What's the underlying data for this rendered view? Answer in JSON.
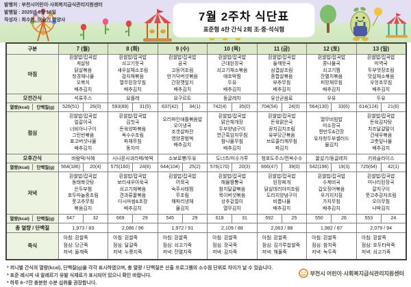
{
  "meta": {
    "publisher_line": "발행처 : 부천시어린이·사회복지급식관리지원센터",
    "date_line": "발행일 : 2025년 6월 16일",
    "author_line": "작성자 : 최수현, 이슬기 영양사"
  },
  "title": {
    "main": "7월 2주차 식단표",
    "subtitle": "표준형 4찬 간식 2회 조·중·석식형"
  },
  "colors": {
    "header_green": "#dbe9c9",
    "label_green": "#ecf3e0",
    "sunday_red": "#d80000",
    "logo_orange": "#ef8a2a"
  },
  "decorations": [
    "ferris-wheel",
    "tulips",
    "carousel",
    "fence",
    "tree",
    "mascot-with-balloon",
    "carousel"
  ],
  "table": {
    "corner_label": "구분",
    "row_labels": {
      "breakfast": "아침",
      "am_snack": "오전간식",
      "kcal": "열량(kcal)",
      "protein": "단백질(g)",
      "lunch": "점심",
      "pm_snack": "오후간식",
      "dinner": "저녁",
      "total": "총 열량 / 단백질",
      "porridge": "죽식"
    },
    "days": [
      {
        "label": "7 (월)",
        "red": false,
        "breakfast": [
          "흰쌀밥/잡곡밥",
          "게살탕",
          "닭살볶음",
          "청경채나물",
          "오복지",
          "배추김치"
        ],
        "am_snack": "석류주스",
        "am_kcal": "526(51)",
        "am_protein": "26(0)",
        "lunch": [
          "흰쌀밥/잡곡밥",
          "얼갈이국",
          "너비아니구이",
          "그린빈볶음",
          "표고버섯나물",
          "배추김치"
        ],
        "pm_snack": "바람떡/식혜",
        "pm_kcal": "564(186)",
        "pm_protein": "20(4)",
        "dinner": [
          "흰쌀밥/잡곡밥",
          "동태쑥갓탕",
          "은두부찜",
          "호두마늘종조림",
          "풋고추무침",
          "볶음김치"
        ],
        "dinner_kcal": "647",
        "dinner_protein": "32",
        "total": "1,973 / 83",
        "porridge": [
          "아침: 흰쌀죽",
          "점심: 당근죽",
          "저녁: 들깨죽"
        ]
      },
      {
        "label": "8 (화)",
        "red": false,
        "breakfast": [
          "흰쌀밥/잡곡밥",
          "쇠고기뭇국",
          "새우살채소조림",
          "감자채볶음",
          "열무된장무침",
          "배추김치"
        ],
        "am_snack": "요플레",
        "am_kcal": "593(89)",
        "am_protein": "31(5)",
        "lunch": [
          "흰쌀밥/잡곡밥",
          "김칫국",
          "돈육양파볶음",
          "옥수수조림",
          "파채무침",
          "동치미"
        ],
        "pm_snack": "시나몬사과라떼/쑥떡",
        "pm_kcal": "575(160)",
        "pm_protein": "24(6)",
        "dinner": [
          "흰쌀밥/잡곡밥",
          "보리새우아욱국",
          "쇠고기채볶음",
          "견과류꿀볶음",
          "다시마쌈&초장",
          "배추김치"
        ],
        "dinner_kcal": "669",
        "dinner_protein": "29",
        "total": "2,086 / 96",
        "porridge": [
          "아침: 흰쌀죽",
          "점심: 달걀죽",
          "저녁: 누룽지죽"
        ]
      },
      {
        "label": "9 (수)",
        "red": false,
        "breakfast": [
          "흰쌀밥/잡곡밥",
          "곰국",
          "고등어조림",
          "만가닥버섯볶음",
          "간장깻잎지",
          "배추김치"
        ],
        "am_snack": "요구르트",
        "am_kcal": "637(42)",
        "am_protein": "34(1)",
        "lunch": [
          "오리파인애플볶음밥",
          "오이냉국",
          "조갯살파전",
          "영양콩범벅",
          "배추김치"
        ],
        "pm_snack": "소보로빵/두유",
        "pm_kcal": "644(104)",
        "pm_protein": "25(2)",
        "dinner": [
          "흰쌀밥/잡곡밥",
          "어묵국",
          "숙주사태찜",
          "무조림",
          "해파리냉채",
          "물김치"
        ],
        "dinner_kcal": "545",
        "dinner_protein": "29",
        "total": "1,972 / 91",
        "porridge": [
          "아침: 흰쌀죽",
          "점심: 쇠고기죽",
          "저녁: 잔멸치죽"
        ]
      },
      {
        "label": "10 (목)",
        "red": false,
        "breakfast": [
          "흰쌀밥/잡곡밥",
          "근대된장국",
          "쇠고기채소볶음",
          "애호박찜",
          "두유",
          "배추김치"
        ],
        "am_snack": "둥글레차",
        "am_kcal": "742(4)",
        "am_protein": "35(0)",
        "lunch": [
          "흰쌀밥/잡곡밥",
          "맑은채개장",
          "두부양념구이",
          "연근흑임자무침",
          "참나물무침",
          "배추김치"
        ],
        "pm_snack": "도너츠/미수가루",
        "pm_kcal": "576(170)",
        "pm_protein": "20(3)",
        "dinner": [
          "흰쌀밥/잡곡밥",
          "해물짬뽕국",
          "참치달걀볶음",
          "목이버섯볶음",
          "상추겉절이",
          "열무김치"
        ],
        "dinner_kcal": "618",
        "dinner_protein": "31",
        "total": "2,109 / 88",
        "porridge": [
          "아침: 흰쌀죽",
          "점심: 장국죽",
          "저녁: 감자죽"
        ]
      },
      {
        "label": "11 (금)",
        "red": false,
        "breakfast": [
          "흰쌀밥/잡곡밥",
          "들깨뭇국",
          "삼겹살조림",
          "종합살볶음",
          "부추무침",
          "배추김치"
        ],
        "am_snack": "유산균음료",
        "am_kcal": "704(54)",
        "am_protein": "24(0)",
        "lunch": [
          "흰쌀밥/잡곡밥",
          "돈육맑은국",
          "꽁치김치조림",
          "유부당근볶음",
          "브로콜리깨무침",
          "파김치"
        ],
        "pm_snack": "청포도주스/찐옥수수",
        "pm_kcal": "666(47)",
        "pm_protein": "39(0)",
        "dinner": [
          "흰쌀밥/잡곡밥",
          "된장찌개",
          "닭살데리야끼조림",
          "도라지양념구이",
          "비름나물",
          "배추김치"
        ],
        "dinner_kcal": "592",
        "dinner_protein": "25",
        "total": "2,063 / 88",
        "porridge": [
          "아침: 흰쌀죽",
          "점심: 김가루찹쌀죽",
          "저녁: 해물죽"
        ]
      },
      {
        "label": "12 (토)",
        "red": false,
        "breakfast": [
          "흰쌀밥/잡곡밥",
          "콩나물국",
          "쇠고기찜",
          "잔멸치볶음",
          "피망채무침",
          "배추김치"
        ],
        "am_snack": "우유",
        "am_kcal": "564(130)",
        "am_protein": "33(6)",
        "lunch": [
          "열무비빔밥",
          "미소장국",
          "찐만두&간장",
          "유자청두부샐러드",
          "물김치"
        ],
        "pm_snack": "꿀설기/둥글레차",
        "pm_kcal": "542(196)",
        "pm_protein": "19(3)",
        "dinner": [
          "흰쌀밥/잡곡밥",
          "수제비국",
          "갑오징어볶음",
          "우거지지짐",
          "가지무침",
          "배추김치"
        ],
        "dinner_kcal": "550",
        "dinner_protein": "26",
        "total": "1,982 / 87",
        "porridge": [
          "아침: 흰쌀죽",
          "점심: 참치죽",
          "저녁: 녹두죽"
        ]
      },
      {
        "label": "13 (일)",
        "red": true,
        "breakfast": [
          "흰쌀밥/잡곡밥",
          "미역국",
          "두부엿장조림",
          "맛살채소볶음",
          "우엉초무침",
          "배추김치"
        ],
        "am_snack": "두유",
        "am_kcal": "614(124)",
        "am_protein": "21(6)",
        "lunch": [
          "흰쌀밥/잡곡밥",
          "돈육감자탕",
          "치즈달걀말이",
          "건새우볶음",
          "고춧잎나물",
          "배추김치"
        ],
        "pm_snack": "키위슬라이스",
        "pm_kcal": "725(64)",
        "pm_protein": "42(1)",
        "dinner": [
          "흰쌀밥/잡곡밥",
          "미나리된장국",
          "갈치구이",
          "풋고추감자조림",
          "오이무침",
          "나박김치"
        ],
        "dinner_kcal": "553",
        "dinner_protein": "24",
        "total": "2,079 / 94",
        "porridge": [
          "아침: 흰쌀죽",
          "점심: 호두타락죽",
          "저녁: 쇠고기죽"
        ]
      }
    ]
  },
  "footnotes": [
    "* 끼니별 간식의 열량(kcal), 단백질(g)을 각각 표시하였으며, 총 열량 / 단백질은 산출 프로그램의 소수점 단위로 차이가 날 수 있습니다.",
    "* 표준 레시피 내 알레르기 유발 식재료가 표시되어 있으니 확인 바랍니다.",
    "* 하루 6~7잔 충분한 수분 섭취를 권장합니다."
  ],
  "logo": {
    "text": "부천시 어린이·사회복지급식관리지원센터"
  }
}
